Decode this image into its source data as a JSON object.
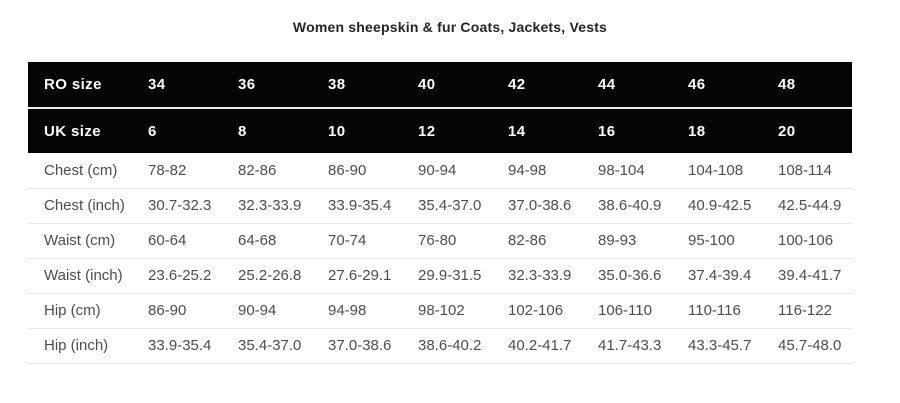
{
  "title": "Women sheepskin & fur Coats, Jackets, Vests",
  "colors": {
    "header_bg": "#050505",
    "header_text": "#ffffff",
    "header_divider": "#ededed",
    "body_text": "#4d4d4d",
    "row_border": "#e9e9e9",
    "title_text": "#23232d",
    "page_bg": "#ffffff"
  },
  "chart_data": {
    "type": "table",
    "title": "Women sheepskin & fur Coats, Jackets, Vests",
    "header_rows": [
      {
        "label": "RO size",
        "values": [
          "34",
          "36",
          "38",
          "40",
          "42",
          "44",
          "46",
          "48"
        ]
      },
      {
        "label": "UK size",
        "values": [
          "6",
          "8",
          "10",
          "12",
          "14",
          "16",
          "18",
          "20"
        ]
      }
    ],
    "body_rows": [
      {
        "label": "Chest (cm)",
        "values": [
          "78-82",
          "82-86",
          "86-90",
          "90-94",
          "94-98",
          "98-104",
          "104-108",
          "108-114"
        ]
      },
      {
        "label": "Chest (inch)",
        "values": [
          "30.7-32.3",
          "32.3-33.9",
          "33.9-35.4",
          "35.4-37.0",
          "37.0-38.6",
          "38.6-40.9",
          "40.9-42.5",
          "42.5-44.9"
        ]
      },
      {
        "label": "Waist (cm)",
        "values": [
          "60-64",
          "64-68",
          "70-74",
          "76-80",
          "82-86",
          "89-93",
          "95-100",
          "100-106"
        ]
      },
      {
        "label": "Waist (inch)",
        "values": [
          "23.6-25.2",
          "25.2-26.8",
          "27.6-29.1",
          "29.9-31.5",
          "32.3-33.9",
          "35.0-36.6",
          "37.4-39.4",
          "39.4-41.7"
        ]
      },
      {
        "label": "Hip (cm)",
        "values": [
          "86-90",
          "90-94",
          "94-98",
          "98-102",
          "102-106",
          "106-110",
          "110-116",
          "116-122"
        ]
      },
      {
        "label": "Hip (inch)",
        "values": [
          "33.9-35.4",
          "35.4-37.0",
          "37.0-38.6",
          "38.6-40.2",
          "40.2-41.7",
          "41.7-43.3",
          "43.3-45.7",
          "45.7-48.0"
        ]
      }
    ]
  }
}
